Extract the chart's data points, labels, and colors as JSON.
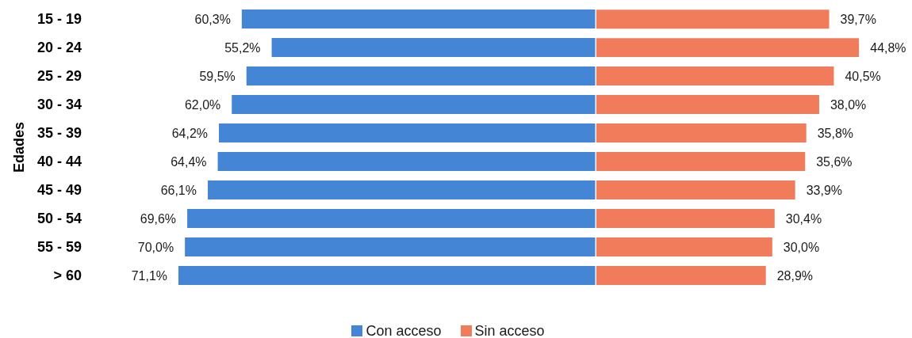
{
  "chart_data": [
    {
      "type": "bar",
      "orientation": "horizontal",
      "ylabel": "Edades",
      "tick_labels": "y",
      "legend": "bottom",
      "categories": [
        "15 - 19",
        "20 - 24",
        "25 - 29",
        "30 - 34",
        "35 - 39",
        "40 - 44",
        "45 - 49",
        "50 - 54",
        "55 - 59",
        "> 60"
      ],
      "xlim": [
        71.1,
        0
      ],
      "series": [
        {
          "name": "Con acceso",
          "color": "#4585d5",
          "values": [
            60.3,
            55.2,
            59.5,
            62.0,
            64.2,
            64.4,
            66.1,
            69.6,
            70.0,
            71.1
          ],
          "value_labels": [
            "60,3%",
            "55,2%",
            "59,5%",
            "62,0%",
            "64,2%",
            "64,4%",
            "66,1%",
            "69,6%",
            "70,0%",
            "71,1%"
          ]
        }
      ]
    },
    {
      "type": "bar",
      "orientation": "horizontal",
      "tick_labels": false,
      "legend": "bottom",
      "categories": [
        null,
        null,
        null,
        null,
        null,
        null,
        null,
        null,
        null,
        null
      ],
      "xlim": [
        0,
        44.8
      ],
      "series": [
        {
          "name": "Sin acceso",
          "color": "#f07c5c",
          "values": [
            39.7,
            44.8,
            40.5,
            38.0,
            35.8,
            35.6,
            33.9,
            30.4,
            30.0,
            28.9
          ],
          "value_labels": [
            "39,7%",
            "44,8%",
            "40,5%",
            "38,0%",
            "35,8%",
            "35,6%",
            "33,9%",
            "30,4%",
            "30,0%",
            "28,9%"
          ]
        }
      ]
    }
  ]
}
